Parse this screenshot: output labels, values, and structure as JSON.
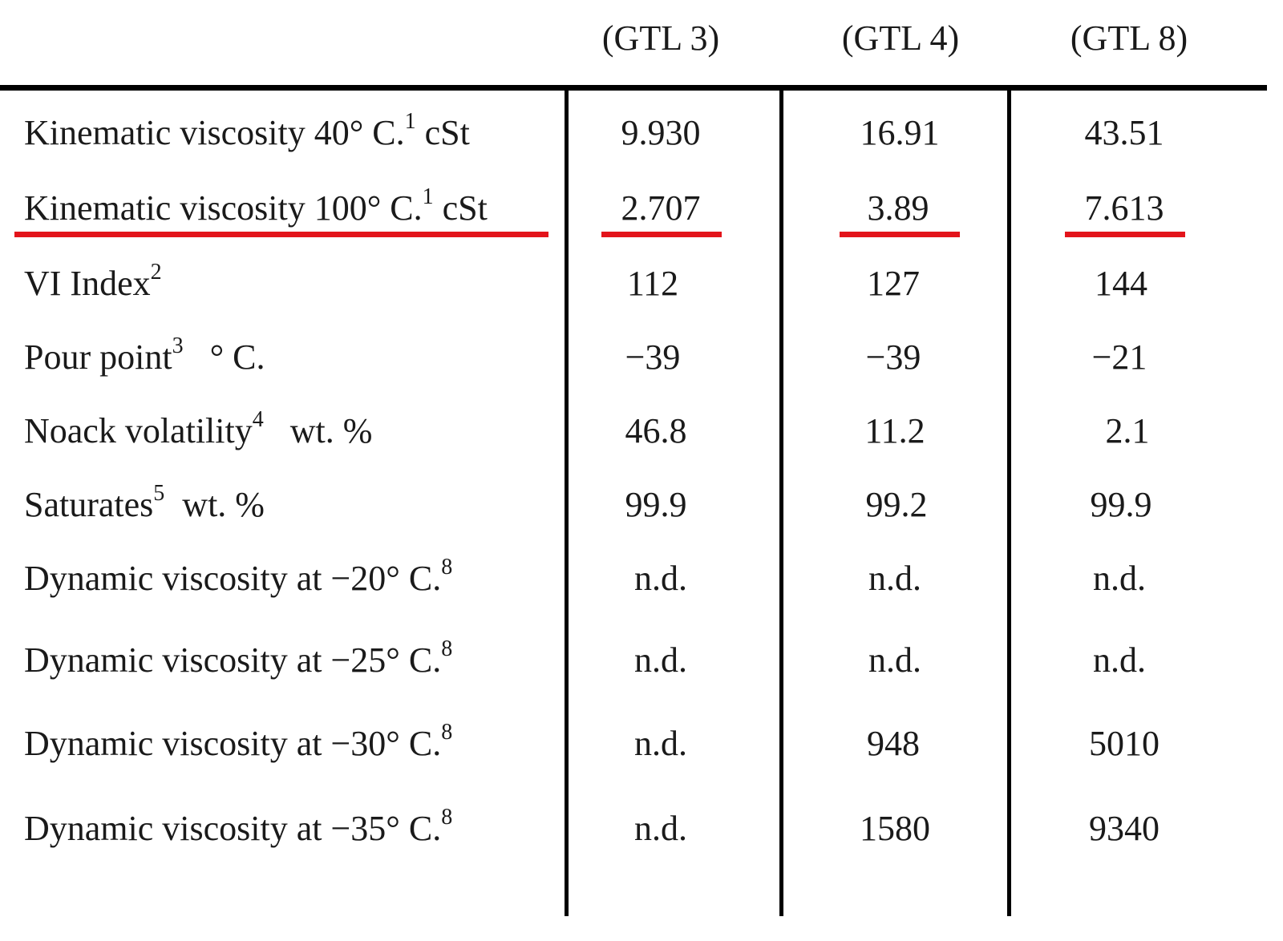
{
  "table": {
    "columns": [
      "(GTL 3)",
      "(GTL 4)",
      "(GTL 8)"
    ],
    "rows": [
      {
        "label": "Kinematic viscosity  40° C.",
        "sup": "1",
        "unit": " cSt",
        "values": [
          "9.930",
          "16.91",
          "43.51"
        ]
      },
      {
        "label": "Kinematic viscosity 100° C.",
        "sup": "1",
        "unit": " cSt",
        "values": [
          "2.707",
          "3.89",
          "7.613"
        ]
      },
      {
        "label": "VI Index",
        "sup": "2",
        "unit": "",
        "values": [
          "112",
          "127",
          "144"
        ]
      },
      {
        "label": "Pour point",
        "sup": "3",
        "unit": "   ° C.",
        "values": [
          "−39",
          "−39",
          "−21"
        ]
      },
      {
        "label": "Noack volatility",
        "sup": "4",
        "unit": "   wt. %",
        "values": [
          "46.8",
          "11.2",
          "2.1"
        ]
      },
      {
        "label": "Saturates",
        "sup": "5",
        "unit": "  wt. %",
        "values": [
          "99.9",
          "99.2",
          "99.9"
        ]
      },
      {
        "label": "Dynamic viscosity at −20° C.",
        "sup": "8",
        "unit": "",
        "values": [
          "n.d.",
          "n.d.",
          "n.d."
        ]
      },
      {
        "label": "Dynamic viscosity at −25° C.",
        "sup": "8",
        "unit": "",
        "values": [
          "n.d.",
          "n.d.",
          "n.d."
        ]
      },
      {
        "label": "Dynamic viscosity at −30° C.",
        "sup": "8",
        "unit": "",
        "values": [
          "n.d.",
          "948",
          "5010"
        ]
      },
      {
        "label": "Dynamic viscosity at −35° C.",
        "sup": "8",
        "unit": "",
        "values": [
          "n.d.",
          "1580",
          "9340"
        ]
      }
    ]
  },
  "colors": {
    "highlight": "#e3141b",
    "rule": "#000000"
  }
}
